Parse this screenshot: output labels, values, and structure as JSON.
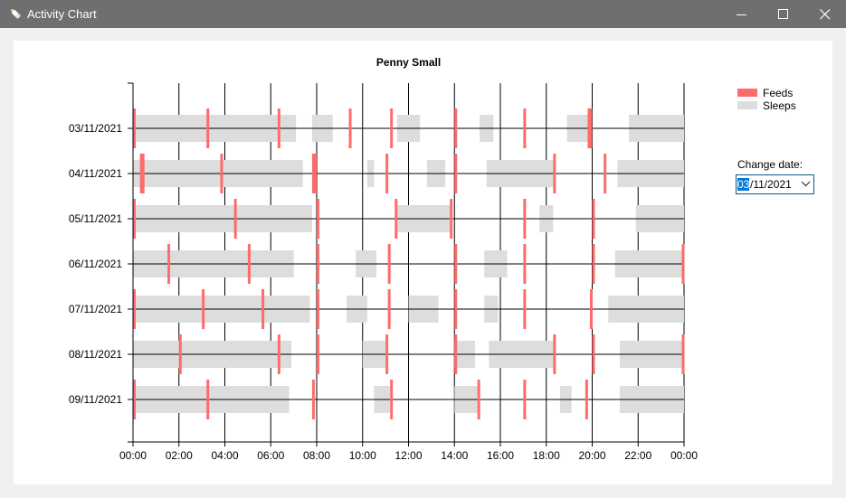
{
  "window": {
    "title": "Activity Chart"
  },
  "icons": {
    "app": "baby-bottle-icon",
    "minimize": "minimize-icon",
    "maximize": "maximize-icon",
    "close": "close-icon",
    "dropdown": "chevron-down-icon"
  },
  "colors": {
    "feeds": "#ff6b6b",
    "sleeps": "#dddddd",
    "titlebar": "#6f6f6f"
  },
  "legend": {
    "feeds": "Feeds",
    "sleeps": "Sleeps"
  },
  "controls": {
    "change_date_label": "Change date:",
    "date_selected_part": "03",
    "date_rest": "/11/2021"
  },
  "chart_data": {
    "type": "timeline",
    "title": "Penny Small",
    "x_ticks": [
      "00:00",
      "02:00",
      "04:00",
      "06:00",
      "08:00",
      "10:00",
      "12:00",
      "14:00",
      "16:00",
      "18:00",
      "20:00",
      "22:00",
      "00:00"
    ],
    "x_range_hours": [
      0,
      24
    ],
    "grid": true,
    "legend_position": "top-right",
    "days": [
      {
        "label": "03/11/2021",
        "sleeps": [
          [
            0.0,
            7.1
          ],
          [
            7.8,
            8.7
          ],
          [
            11.5,
            12.5
          ],
          [
            15.1,
            15.7
          ],
          [
            18.9,
            19.8
          ],
          [
            21.6,
            24.0
          ]
        ],
        "feeds": [
          [
            0.0,
            0.1
          ],
          [
            3.2,
            3.3
          ],
          [
            6.3,
            6.4
          ],
          [
            9.4,
            9.5
          ],
          [
            11.2,
            11.3
          ],
          [
            14.0,
            14.1
          ],
          [
            17.0,
            17.1
          ],
          [
            19.8,
            20.0
          ]
        ]
      },
      {
        "label": "04/11/2021",
        "sleeps": [
          [
            0.0,
            7.4
          ],
          [
            10.2,
            10.5
          ],
          [
            12.8,
            13.6
          ],
          [
            15.4,
            18.4
          ],
          [
            21.1,
            24.0
          ]
        ],
        "feeds": [
          [
            0.3,
            0.5
          ],
          [
            3.8,
            3.9
          ],
          [
            7.8,
            8.0
          ],
          [
            11.0,
            11.1
          ],
          [
            14.0,
            14.1
          ],
          [
            18.3,
            18.4
          ],
          [
            20.5,
            20.6
          ]
        ]
      },
      {
        "label": "05/11/2021",
        "sleeps": [
          [
            0.0,
            7.8
          ],
          [
            11.5,
            13.8
          ],
          [
            17.7,
            18.3
          ],
          [
            21.9,
            24.0
          ]
        ],
        "feeds": [
          [
            0.0,
            0.1
          ],
          [
            4.4,
            4.5
          ],
          [
            8.0,
            8.1
          ],
          [
            11.4,
            11.5
          ],
          [
            13.8,
            13.9
          ],
          [
            17.0,
            17.1
          ],
          [
            20.0,
            20.1
          ]
        ]
      },
      {
        "label": "06/11/2021",
        "sleeps": [
          [
            0.0,
            7.0
          ],
          [
            9.7,
            10.6
          ],
          [
            15.3,
            16.3
          ],
          [
            21.0,
            24.0
          ]
        ],
        "feeds": [
          [
            1.5,
            1.6
          ],
          [
            5.0,
            5.1
          ],
          [
            8.0,
            8.1
          ],
          [
            11.1,
            11.2
          ],
          [
            14.0,
            14.1
          ],
          [
            17.0,
            17.1
          ],
          [
            20.0,
            20.1
          ],
          [
            23.9,
            24.0
          ]
        ]
      },
      {
        "label": "07/11/2021",
        "sleeps": [
          [
            0.0,
            7.7
          ],
          [
            9.3,
            10.2
          ],
          [
            12.0,
            13.3
          ],
          [
            15.3,
            15.9
          ],
          [
            20.7,
            24.0
          ]
        ],
        "feeds": [
          [
            0.0,
            0.1
          ],
          [
            3.0,
            3.1
          ],
          [
            5.6,
            5.7
          ],
          [
            8.0,
            8.1
          ],
          [
            11.1,
            11.2
          ],
          [
            14.0,
            14.1
          ],
          [
            17.0,
            17.1
          ],
          [
            19.9,
            20.0
          ]
        ]
      },
      {
        "label": "08/11/2021",
        "sleeps": [
          [
            0.0,
            6.9
          ],
          [
            10.0,
            11.0
          ],
          [
            14.0,
            14.9
          ],
          [
            15.5,
            18.4
          ],
          [
            21.2,
            24.0
          ]
        ],
        "feeds": [
          [
            2.0,
            2.1
          ],
          [
            6.3,
            6.4
          ],
          [
            8.0,
            8.1
          ],
          [
            11.0,
            11.1
          ],
          [
            14.0,
            14.1
          ],
          [
            18.3,
            18.4
          ],
          [
            20.0,
            20.1
          ],
          [
            23.9,
            24.0
          ]
        ]
      },
      {
        "label": "09/11/2021",
        "sleeps": [
          [
            0.0,
            6.8
          ],
          [
            10.5,
            11.2
          ],
          [
            14.0,
            15.0
          ],
          [
            18.6,
            19.1
          ],
          [
            21.2,
            24.0
          ]
        ],
        "feeds": [
          [
            0.0,
            0.1
          ],
          [
            3.2,
            3.3
          ],
          [
            7.8,
            7.9
          ],
          [
            11.2,
            11.3
          ],
          [
            15.0,
            15.1
          ],
          [
            17.0,
            17.1
          ],
          [
            19.7,
            19.8
          ]
        ]
      }
    ]
  }
}
